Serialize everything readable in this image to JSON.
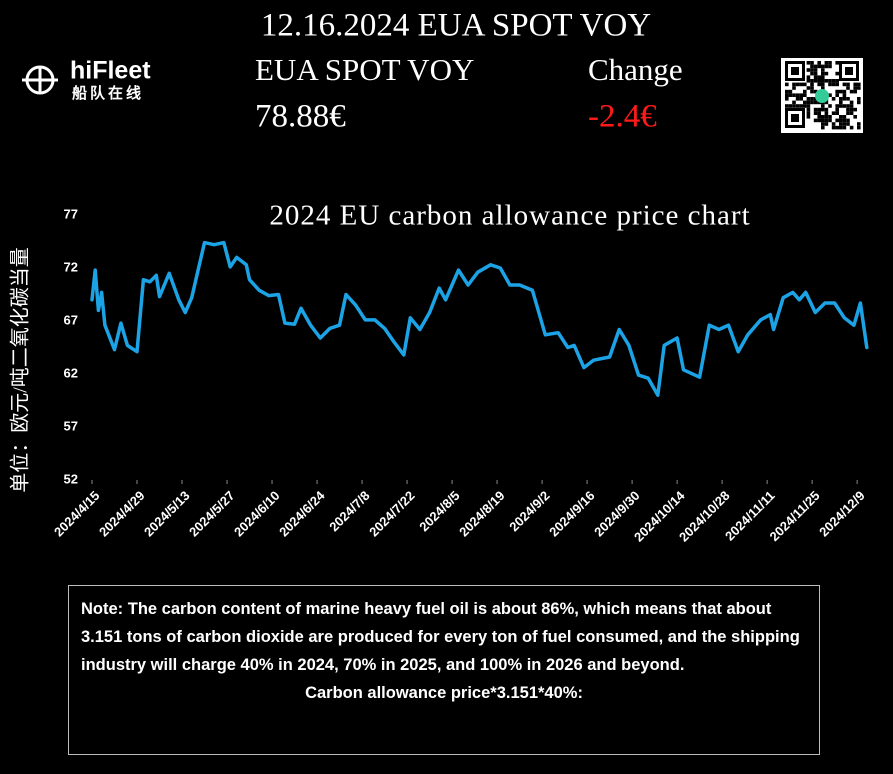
{
  "header": {
    "title": "12.16.2024 EUA SPOT VOY",
    "logo": {
      "name": "hiFleet",
      "subtitle": "船队在线"
    },
    "price_label": "EUA SPOT VOY",
    "price": "78.88€",
    "change_label": "Change",
    "change": "-2.4€"
  },
  "chart_data": {
    "type": "line",
    "title": "2024 EU carbon allowance price chart",
    "y_label": "单位：欧元/吨二氧化碳当量",
    "color": "#1ca3e6",
    "x": [
      "2024/4/15",
      "2024/4/16",
      "2024/4/17",
      "2024/4/18",
      "2024/4/19",
      "2024/4/22",
      "2024/4/24",
      "2024/4/26",
      "2024/4/29",
      "2024/5/1",
      "2024/5/3",
      "2024/5/5",
      "2024/5/6",
      "2024/5/9",
      "2024/5/12",
      "2024/5/14",
      "2024/5/16",
      "2024/5/20",
      "2024/5/23",
      "2024/5/26",
      "2024/5/28",
      "2024/5/30",
      "2024/6/2",
      "2024/6/3",
      "2024/6/6",
      "2024/6/9",
      "2024/6/12",
      "2024/6/14",
      "2024/6/17",
      "2024/6/19",
      "2024/6/22",
      "2024/6/25",
      "2024/6/28",
      "2024/7/1",
      "2024/7/3",
      "2024/7/6",
      "2024/7/9",
      "2024/7/12",
      "2024/7/15",
      "2024/7/18",
      "2024/7/21",
      "2024/7/23",
      "2024/7/26",
      "2024/7/29",
      "2024/8/1",
      "2024/8/3",
      "2024/8/7",
      "2024/8/10",
      "2024/8/13",
      "2024/8/17",
      "2024/8/20",
      "2024/8/23",
      "2024/8/26",
      "2024/8/30",
      "2024/9/3",
      "2024/9/7",
      "2024/9/10",
      "2024/9/12",
      "2024/9/15",
      "2024/9/18",
      "2024/9/23",
      "2024/9/26",
      "2024/9/29",
      "2024/10/2",
      "2024/10/5",
      "2024/10/8",
      "2024/10/10",
      "2024/10/14",
      "2024/10/16",
      "2024/10/21",
      "2024/10/24",
      "2024/10/27",
      "2024/10/30",
      "2024/11/2",
      "2024/11/5",
      "2024/11/9",
      "2024/11/12",
      "2024/11/13",
      "2024/11/16",
      "2024/11/19",
      "2024/11/21",
      "2024/11/23",
      "2024/11/26",
      "2024/11/29",
      "2024/12/2",
      "2024/12/5",
      "2024/12/8",
      "2024/12/10",
      "2024/12/12"
    ],
    "values": [
      69.0,
      71.8,
      68.0,
      69.7,
      66.6,
      64.3,
      66.8,
      64.7,
      64.1,
      70.9,
      70.7,
      71.3,
      69.3,
      71.5,
      69.0,
      67.8,
      69.2,
      74.4,
      74.2,
      74.4,
      72.1,
      73.0,
      72.3,
      70.9,
      69.9,
      69.4,
      69.5,
      66.8,
      66.7,
      68.2,
      66.6,
      65.4,
      66.3,
      66.6,
      69.5,
      68.5,
      67.1,
      67.1,
      66.3,
      65.0,
      63.8,
      67.3,
      66.2,
      67.8,
      70.1,
      69.0,
      71.8,
      70.4,
      71.6,
      72.3,
      72.0,
      70.4,
      70.4,
      69.9,
      65.7,
      65.9,
      64.5,
      64.7,
      62.6,
      63.3,
      63.6,
      66.2,
      64.7,
      61.9,
      61.6,
      60.0,
      64.7,
      65.4,
      62.4,
      61.7,
      66.6,
      66.2,
      66.6,
      64.1,
      65.7,
      67.1,
      67.6,
      66.2,
      69.2,
      69.7,
      69.0,
      69.7,
      67.8,
      68.7,
      68.7,
      67.3,
      66.6,
      68.7,
      64.5
    ],
    "xlim": [
      "2024/4/15",
      "2024/12/13"
    ],
    "xticks": [
      "2024/4/15",
      "2024/4/29",
      "2024/5/13",
      "2024/5/27",
      "2024/6/10",
      "2024/6/24",
      "2024/7/8",
      "2024/7/22",
      "2024/8/5",
      "2024/8/19",
      "2024/9/2",
      "2024/9/16",
      "2024/9/30",
      "2024/10/14",
      "2024/10/28",
      "2024/11/11",
      "2024/11/25",
      "2024/12/9"
    ],
    "ylim": [
      52,
      77
    ],
    "yticks": [
      52,
      57,
      62,
      67,
      72,
      77
    ],
    "grid": false
  },
  "note": {
    "text": "Note: The carbon content of marine heavy fuel oil is about 86%, which means that about 3.151 tons of carbon dioxide are produced for every ton of fuel consumed, and the shipping industry will charge 40% in 2024, 70% in 2025, and 100% in 2026 and beyond.",
    "formula": "Carbon allowance price*3.151*40%:"
  }
}
